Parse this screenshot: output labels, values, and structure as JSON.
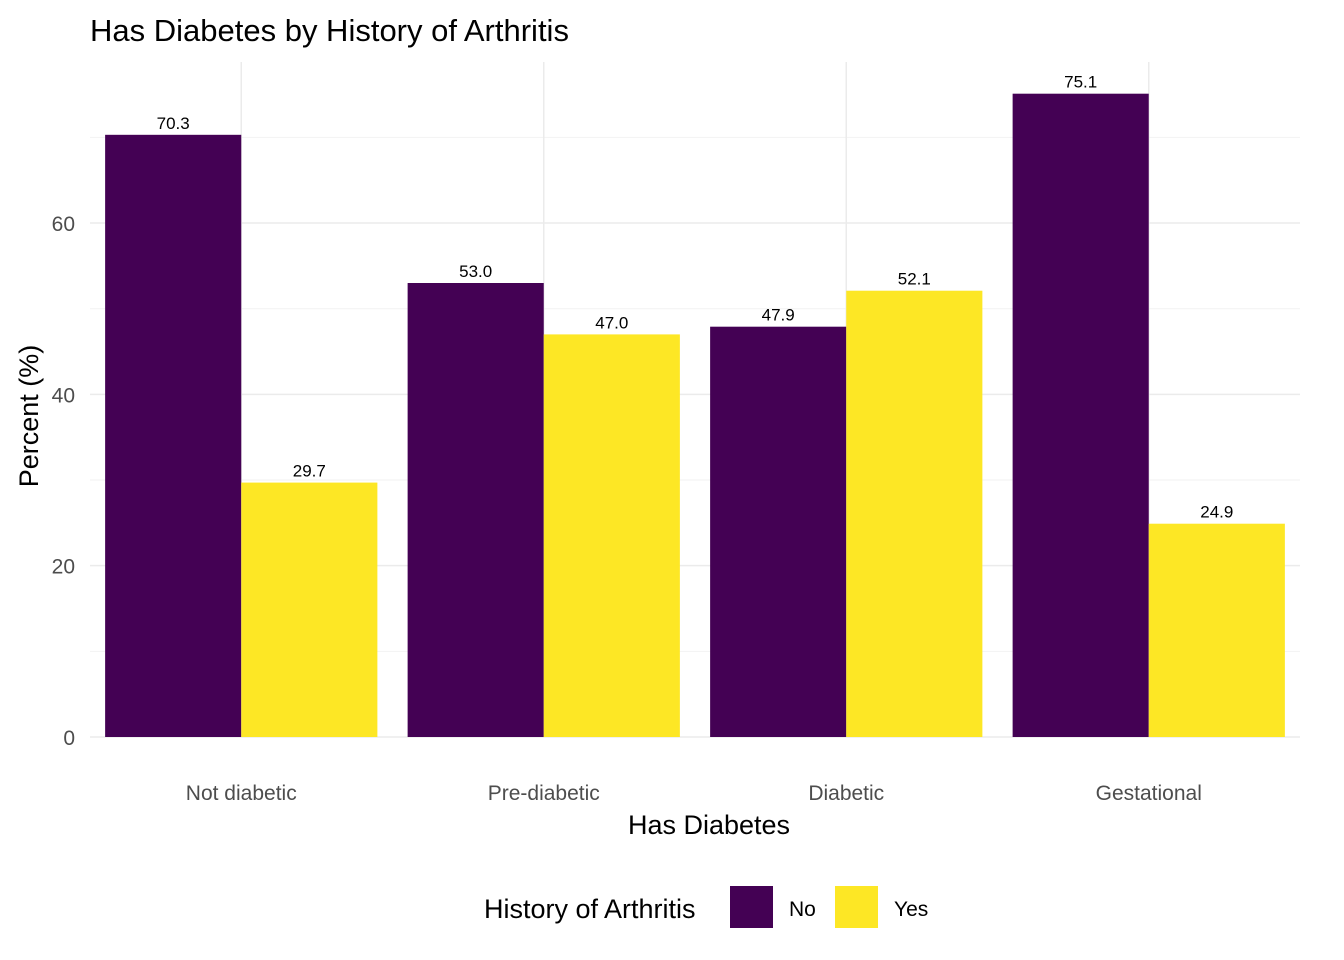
{
  "chart_data": {
    "type": "bar",
    "title": "Has Diabetes by History of Arthritis",
    "xlabel": "Has Diabetes",
    "ylabel": "Percent (%)",
    "categories": [
      "Not diabetic",
      "Pre-diabetic",
      "Diabetic",
      "Gestational"
    ],
    "series": [
      {
        "name": "No",
        "color": "#440154",
        "values": [
          70.3,
          53.0,
          47.9,
          75.1
        ],
        "labels": [
          "70.3",
          "53.0",
          "47.9",
          "75.1"
        ]
      },
      {
        "name": "Yes",
        "color": "#FDE725",
        "values": [
          29.7,
          47.0,
          52.1,
          24.9
        ],
        "labels": [
          "29.7",
          "47.0",
          "52.1",
          "24.9"
        ]
      }
    ],
    "ylim": [
      0,
      78.8
    ],
    "yticks": [
      0,
      20,
      40,
      60
    ],
    "ytick_labels": [
      "0",
      "20",
      "40",
      "60"
    ],
    "grid": true,
    "legend": {
      "title": "History of Arthritis",
      "position": "bottom"
    }
  }
}
